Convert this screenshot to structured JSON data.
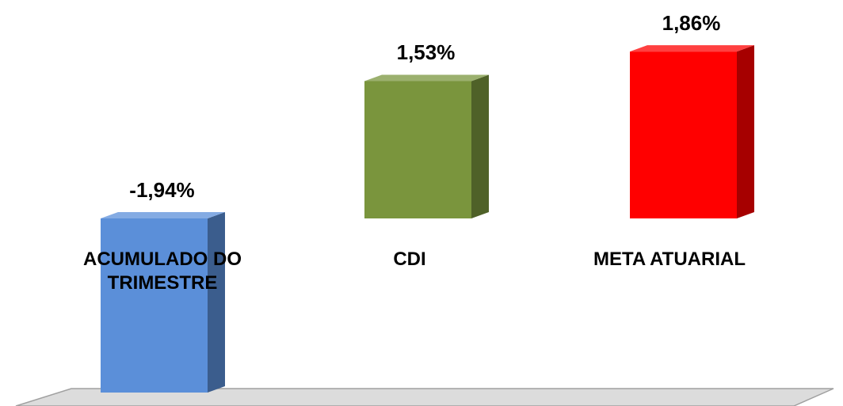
{
  "chart_data": {
    "type": "bar",
    "categories": [
      "ACUMULADO DO TRIMESTRE",
      "CDI",
      "META ATUARIAL"
    ],
    "values": [
      -1.94,
      1.53,
      1.86
    ],
    "value_labels": [
      "-1,94%",
      "1,53%",
      "1,86%"
    ],
    "colors": [
      "#5b8fd9",
      "#7a953d",
      "#ff0000"
    ]
  }
}
